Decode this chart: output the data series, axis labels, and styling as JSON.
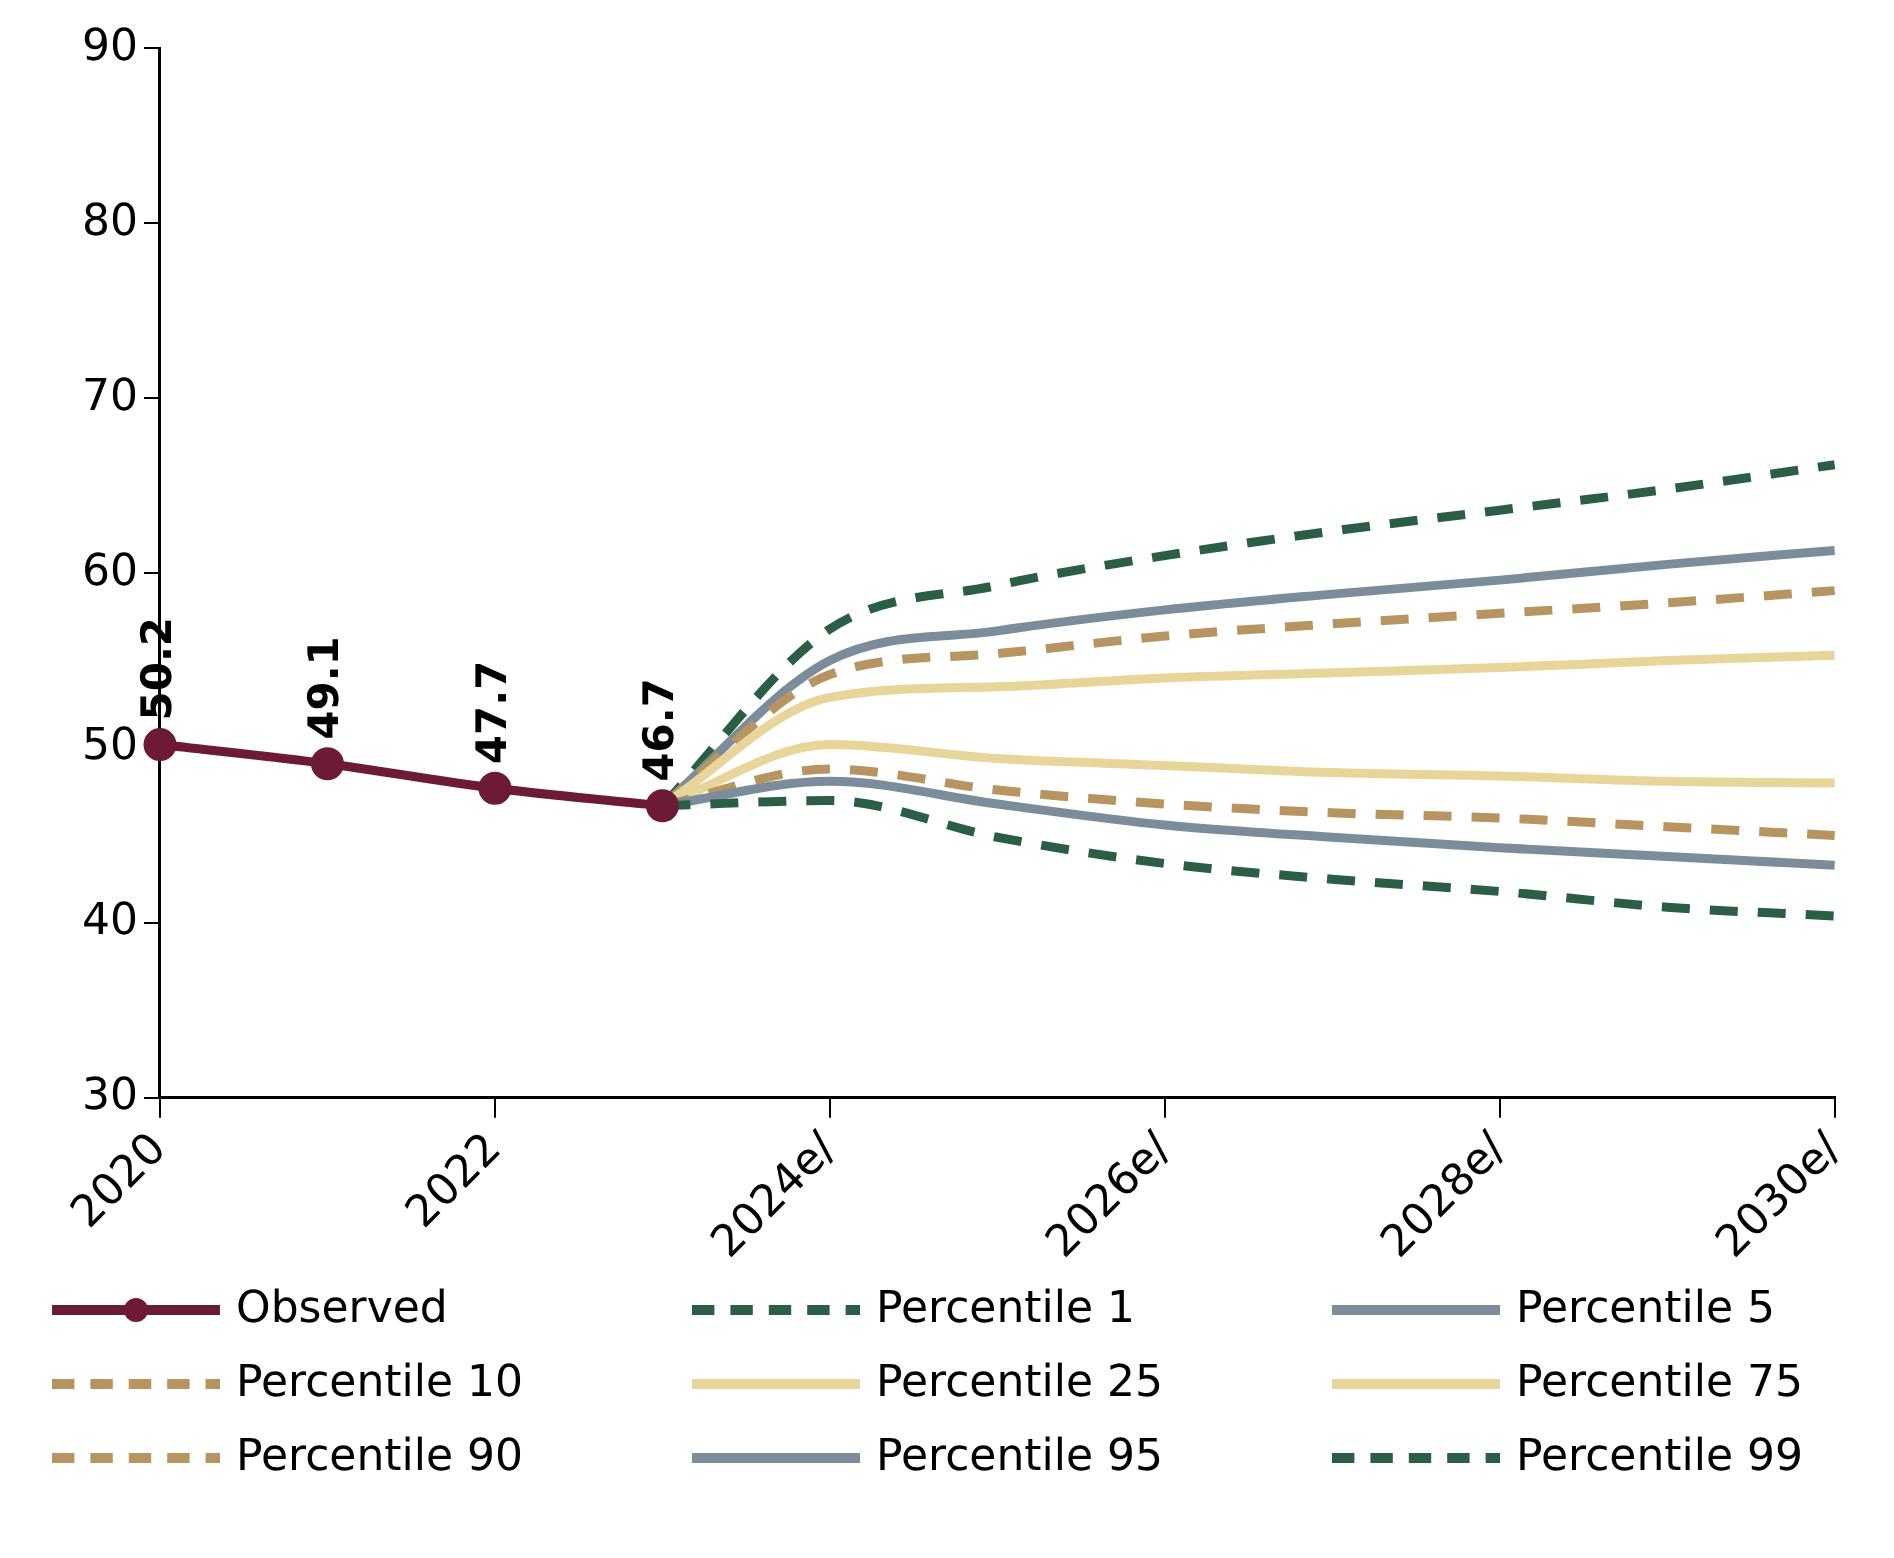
{
  "chart_data": {
    "type": "line",
    "categories": [
      "2020",
      null,
      "2022",
      null,
      "2024e/",
      null,
      "2026e/",
      null,
      "2028e/",
      null,
      "2030e/"
    ],
    "ylim": [
      30,
      90
    ],
    "yticks": [
      30,
      40,
      50,
      60,
      70,
      80,
      90
    ],
    "grid": false,
    "legend": "bottom",
    "series": [
      {
        "name": "Observed",
        "color": "#6d1a36",
        "marker": "circle",
        "line_style": "solid",
        "values": [
          50.2,
          49.1,
          47.7,
          46.7,
          null,
          null,
          null,
          null,
          null,
          null,
          null
        ],
        "value_labels": [
          "50.2",
          "49.1",
          "47.7",
          "46.7",
          null,
          null,
          null,
          null,
          null,
          null,
          null
        ]
      },
      {
        "name": "Percentile 1",
        "color": "#2a5f45",
        "marker": "none",
        "line_style": "dashed",
        "values": [
          null,
          null,
          null,
          46.7,
          47.0,
          44.9,
          43.4,
          42.5,
          41.8,
          40.9,
          40.4
        ]
      },
      {
        "name": "Percentile 5",
        "color": "#7b8d9b",
        "marker": "none",
        "line_style": "solid",
        "values": [
          null,
          null,
          null,
          46.7,
          48.1,
          46.8,
          45.6,
          44.9,
          44.3,
          43.8,
          43.3
        ]
      },
      {
        "name": "Percentile 10",
        "color": "#b89460",
        "marker": "none",
        "line_style": "dashed",
        "values": [
          null,
          null,
          null,
          46.7,
          48.8,
          47.6,
          46.8,
          46.3,
          46.0,
          45.5,
          45.0
        ]
      },
      {
        "name": "Percentile 25",
        "color": "#e8d59a",
        "marker": "none",
        "line_style": "solid",
        "values": [
          null,
          null,
          null,
          46.7,
          50.2,
          49.4,
          49.0,
          48.6,
          48.4,
          48.1,
          48.0
        ]
      },
      {
        "name": "Percentile 75",
        "color": "#e8d59a",
        "marker": "none",
        "line_style": "solid",
        "values": [
          null,
          null,
          null,
          46.7,
          52.9,
          53.5,
          54.0,
          54.3,
          54.6,
          55.0,
          55.3
        ]
      },
      {
        "name": "Percentile 90",
        "color": "#b89460",
        "marker": "none",
        "line_style": "dashed",
        "values": [
          null,
          null,
          null,
          46.7,
          54.2,
          55.4,
          56.4,
          57.1,
          57.7,
          58.3,
          59.0
        ]
      },
      {
        "name": "Percentile 95",
        "color": "#7b8d9b",
        "marker": "none",
        "line_style": "solid",
        "values": [
          null,
          null,
          null,
          46.7,
          55.0,
          56.7,
          57.9,
          58.8,
          59.6,
          60.5,
          61.3
        ]
      },
      {
        "name": "Percentile 99",
        "color": "#2a5f45",
        "marker": "none",
        "line_style": "dashed",
        "values": [
          null,
          null,
          null,
          46.7,
          56.8,
          59.3,
          61.0,
          62.4,
          63.6,
          64.8,
          66.2
        ]
      }
    ]
  }
}
